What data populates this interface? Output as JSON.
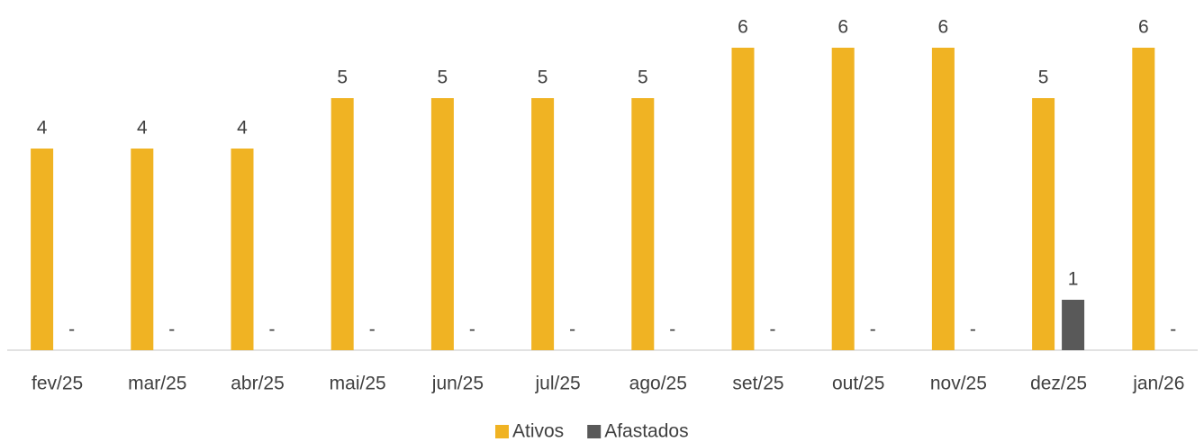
{
  "chart_data": {
    "type": "bar",
    "categories": [
      "fev/25",
      "mar/25",
      "abr/25",
      "mai/25",
      "jun/25",
      "jul/25",
      "ago/25",
      "set/25",
      "out/25",
      "nov/25",
      "dez/25",
      "jan/26"
    ],
    "series": [
      {
        "name": "Ativos",
        "color": "#f0b323",
        "values": [
          4,
          4,
          4,
          5,
          5,
          5,
          5,
          6,
          6,
          6,
          5,
          6
        ]
      },
      {
        "name": "Afastados",
        "color": "#595959",
        "values": [
          0,
          0,
          0,
          0,
          0,
          0,
          0,
          0,
          0,
          0,
          1,
          0
        ],
        "value_labels": [
          "-",
          "-",
          "-",
          "-",
          "-",
          "-",
          "-",
          "-",
          "-",
          "-",
          "1",
          "-"
        ]
      }
    ],
    "legend": "bottom"
  }
}
